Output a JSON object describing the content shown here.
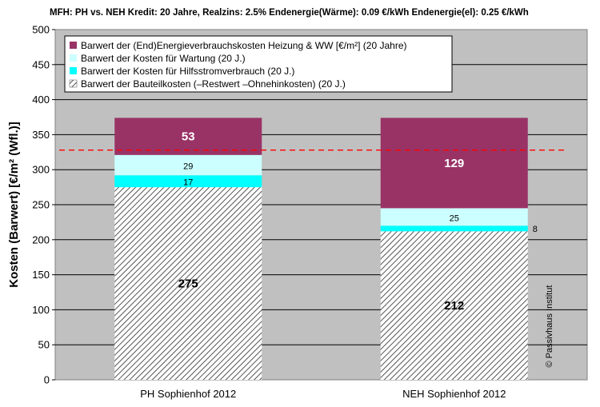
{
  "chart_data": {
    "type": "bar",
    "stacked": true,
    "title": "MFH: PH vs. NEH  Kredit: 20 Jahre,  Realzins: 2.5%  Endenergie(Wärme): 0.09 €/kWh  Endenergie(el): 0.25 €/kWh",
    "ylabel": "Kosten (Barwert)  [€/m² (Wfl.)]",
    "xlabel": "",
    "ylim": [
      0,
      500
    ],
    "yticks": [
      0,
      50,
      100,
      150,
      200,
      250,
      300,
      350,
      400,
      450,
      500
    ],
    "grid": true,
    "legend_position": "top-left",
    "categories": [
      "PH Sophienhof 2012",
      "NEH Sophienhof 2012"
    ],
    "series": [
      {
        "name": "Barwert der Bauteilkosten (–Restwert –Ohnehinkosten)  (20 J.)",
        "values": [
          275,
          212
        ],
        "labels": [
          "275",
          "212"
        ],
        "color": "#ffffff",
        "pattern": "hatch"
      },
      {
        "name": "Barwert der Kosten für  Hilfsstromverbrauch (20 J.)",
        "values": [
          17,
          8
        ],
        "labels": [
          "17",
          "8"
        ],
        "color": "#00ffff"
      },
      {
        "name": "Barwert der Kosten für  Wartung (20 J.)",
        "values": [
          29,
          25
        ],
        "labels": [
          "29",
          "25"
        ],
        "color": "#ccffff"
      },
      {
        "name": "Barwert der (End)Energieverbrauchskosten Heizung & WW   [€/m²]  (20 Jahre)",
        "values": [
          53,
          129
        ],
        "labels": [
          "53",
          "129"
        ],
        "color": "#993366"
      }
    ],
    "reference_line": {
      "y": 328,
      "color": "#ff0000",
      "style": "dashed"
    },
    "legend_order": [
      3,
      2,
      1,
      0
    ],
    "watermark": "© Passivhaus Institut",
    "colors": {
      "plot_background": "#c0c0c0",
      "grid": "#000000",
      "label_dark": "#000000",
      "label_light": "#ffffff"
    }
  }
}
